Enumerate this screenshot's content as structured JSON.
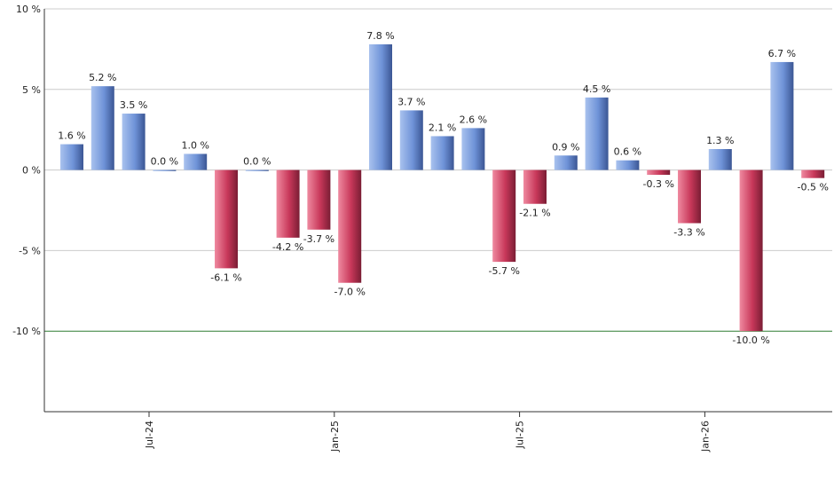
{
  "chart_data": {
    "type": "bar",
    "title": "",
    "xlabel": "",
    "ylabel": "",
    "ylim": [
      -15,
      10
    ],
    "yticks": [
      10,
      5,
      0,
      -5,
      -10
    ],
    "ytick_labels": [
      "10 %",
      "5 %",
      "0 %",
      "-5 %",
      "-10 %"
    ],
    "x_tick_labels": [
      {
        "after_bar": 2,
        "label": "Jul-24"
      },
      {
        "after_bar": 8,
        "label": "Jan-25"
      },
      {
        "after_bar": 14,
        "label": "Jul-25"
      },
      {
        "after_bar": 20,
        "label": "Jan-26"
      }
    ],
    "values": [
      1.6,
      5.2,
      3.5,
      0.0,
      1.0,
      -6.1,
      0.0,
      -4.2,
      -3.7,
      -7.0,
      7.8,
      3.7,
      2.1,
      2.6,
      -5.7,
      -2.1,
      0.9,
      4.5,
      0.6,
      -0.3,
      -3.3,
      1.3,
      -10.0,
      6.7,
      -0.5
    ],
    "value_labels": [
      "1.6 %",
      "5.2 %",
      "3.5 %",
      "0.0 %",
      "1.0 %",
      "-6.1 %",
      "0.0 %",
      "-4.2 %",
      "-3.7 %",
      "-7.0 %",
      "7.8 %",
      "3.7 %",
      "2.1 %",
      "2.6 %",
      "-5.7 %",
      "-2.1 %",
      "0.9 %",
      "4.5 %",
      "0.6 %",
      "-0.3 %",
      "-3.3 %",
      "1.3 %",
      "-10.0 %",
      "6.7 %",
      "-0.5 %"
    ],
    "reference_line": -10,
    "grid": true,
    "colors": {
      "positive": "#6f93d8",
      "negative": "#c8385a",
      "reference_line": "#2e7d32",
      "grid": "#cccccc",
      "axis": "#333333"
    }
  }
}
